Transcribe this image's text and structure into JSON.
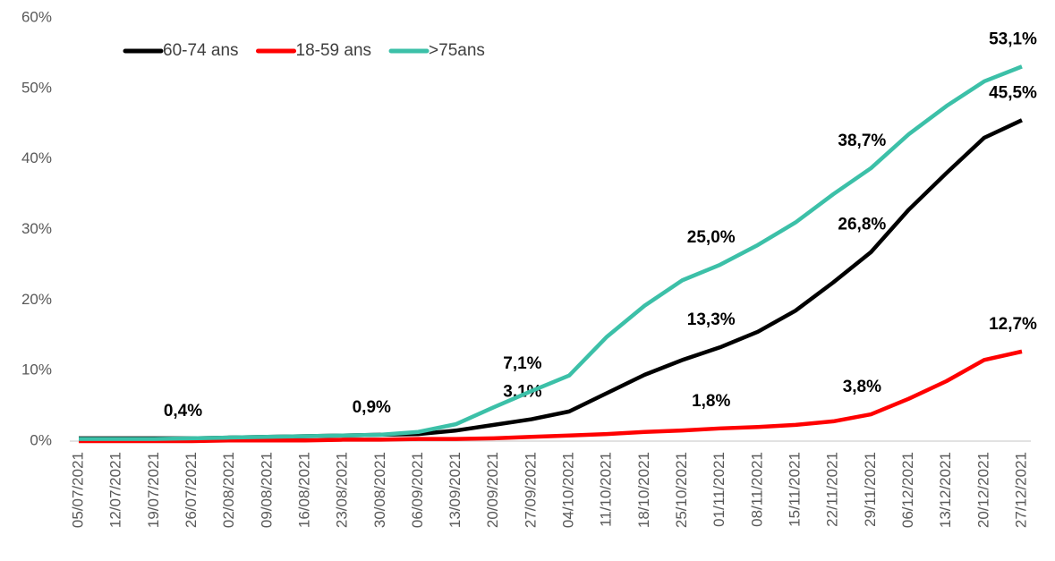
{
  "chart_data": {
    "type": "line",
    "categories": [
      "05/07/2021",
      "12/07/2021",
      "19/07/2021",
      "26/07/2021",
      "02/08/2021",
      "09/08/2021",
      "16/08/2021",
      "23/08/2021",
      "30/08/2021",
      "06/09/2021",
      "13/09/2021",
      "20/09/2021",
      "27/09/2021",
      "04/10/2021",
      "11/10/2021",
      "18/10/2021",
      "25/10/2021",
      "01/11/2021",
      "08/11/2021",
      "15/11/2021",
      "22/11/2021",
      "29/11/2021",
      "06/12/2021",
      "13/12/2021",
      "20/12/2021",
      "27/12/2021"
    ],
    "series": [
      {
        "name": "60-74 ans",
        "color": "#000000",
        "values": [
          0.4,
          0.4,
          0.4,
          0.4,
          0.5,
          0.6,
          0.7,
          0.8,
          0.9,
          1.0,
          1.5,
          2.3,
          3.1,
          4.2,
          6.8,
          9.4,
          11.5,
          13.3,
          15.5,
          18.5,
          22.5,
          26.8,
          32.8,
          38.0,
          43.0,
          45.5
        ],
        "value_labels": [
          null,
          null,
          null,
          "0,4%",
          null,
          null,
          null,
          null,
          "0,9%",
          null,
          null,
          null,
          "3,1%",
          null,
          null,
          null,
          null,
          "13,3%",
          null,
          null,
          null,
          "26,8%",
          null,
          null,
          null,
          "45,5%"
        ]
      },
      {
        "name": "18-59 ans",
        "color": "#ff0000",
        "values": [
          0.0,
          0.0,
          0.0,
          0.0,
          0.1,
          0.1,
          0.1,
          0.2,
          0.2,
          0.3,
          0.3,
          0.4,
          0.6,
          0.8,
          1.0,
          1.3,
          1.5,
          1.8,
          2.0,
          2.3,
          2.8,
          3.8,
          6.0,
          8.5,
          11.5,
          12.7
        ],
        "value_labels": [
          null,
          null,
          null,
          null,
          null,
          null,
          null,
          null,
          null,
          null,
          null,
          null,
          null,
          null,
          null,
          null,
          null,
          "1,8%",
          null,
          null,
          null,
          "3,8%",
          null,
          null,
          null,
          "12,7%"
        ]
      },
      {
        "name": ">75ans",
        "color": "#3cc0a8",
        "values": [
          0.3,
          0.3,
          0.3,
          0.4,
          0.5,
          0.6,
          0.7,
          0.8,
          0.9,
          1.3,
          2.4,
          4.8,
          7.1,
          9.3,
          14.8,
          19.2,
          22.8,
          25.0,
          27.8,
          31.0,
          35.0,
          38.7,
          43.5,
          47.5,
          51.0,
          53.1
        ],
        "value_labels": [
          null,
          null,
          null,
          null,
          null,
          null,
          null,
          null,
          null,
          null,
          null,
          null,
          "7,1%",
          null,
          null,
          null,
          null,
          "25,0%",
          null,
          null,
          null,
          "38,7%",
          null,
          null,
          null,
          "53,1%"
        ]
      }
    ],
    "ylim": [
      0,
      60
    ],
    "yticks": [
      {
        "value": 0,
        "label": "0%"
      },
      {
        "value": 10,
        "label": "10%"
      },
      {
        "value": 20,
        "label": "20%"
      },
      {
        "value": 30,
        "label": "30%"
      },
      {
        "value": 40,
        "label": "40%"
      },
      {
        "value": 50,
        "label": "50%"
      },
      {
        "value": 60,
        "label": "60%"
      }
    ],
    "legend": "top-left"
  }
}
